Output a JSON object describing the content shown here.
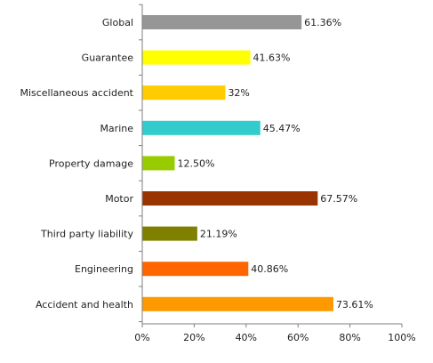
{
  "chart_data": {
    "type": "bar",
    "orientation": "horizontal",
    "categories": [
      "Global",
      "Guarantee",
      "Miscellaneous accident",
      "Marine",
      "Property damage",
      "Motor",
      "Third party liability",
      "Engineering",
      "Accident and health"
    ],
    "values": [
      61.36,
      41.63,
      32,
      45.47,
      12.5,
      67.57,
      21.19,
      40.86,
      73.61
    ],
    "data_labels": [
      "61.36%",
      "41.63%",
      "32%",
      "45.47%",
      "12.50%",
      "67.57%",
      "21.19%",
      "40.86%",
      "73.61%"
    ],
    "colors": [
      "#969696",
      "#ffff00",
      "#ffcc00",
      "#33cccc",
      "#99cc00",
      "#993300",
      "#808000",
      "#ff6600",
      "#ff9900"
    ],
    "xlim": [
      0,
      100
    ],
    "x_ticks": [
      0,
      20,
      40,
      60,
      80,
      100
    ],
    "x_tick_labels": [
      "0%",
      "20%",
      "40%",
      "60%",
      "80%",
      "100%"
    ],
    "title": "",
    "xlabel": "",
    "ylabel": "",
    "grid": false,
    "legend": "none"
  }
}
